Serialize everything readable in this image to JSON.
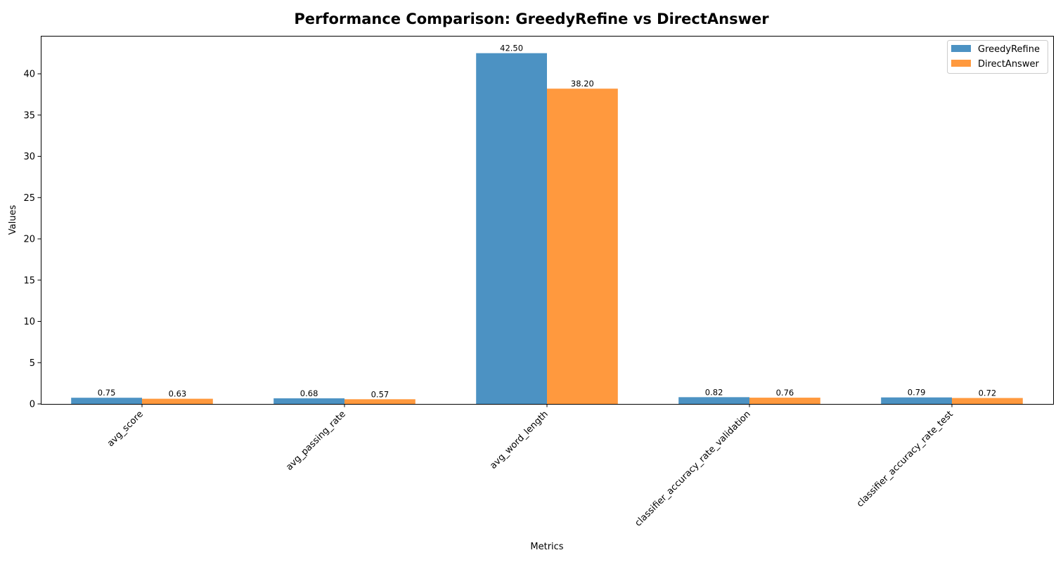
{
  "chart_data": {
    "type": "bar",
    "title": "Performance Comparison: GreedyRefine vs DirectAnswer",
    "xlabel": "Metrics",
    "ylabel": "Values",
    "categories": [
      "avg_score",
      "avg_passing_rate",
      "avg_word_length",
      "classifier_accuracy_rate_validation",
      "classifier_accuracy_rate_test"
    ],
    "series": [
      {
        "name": "GreedyRefine",
        "values": [
          0.75,
          0.68,
          42.5,
          0.82,
          0.79
        ],
        "labels": [
          "0.75",
          "0.68",
          "42.50",
          "0.82",
          "0.79"
        ],
        "color": "#4c92c3"
      },
      {
        "name": "DirectAnswer",
        "values": [
          0.63,
          0.57,
          38.2,
          0.76,
          0.72
        ],
        "labels": [
          "0.63",
          "0.57",
          "38.20",
          "0.76",
          "0.72"
        ],
        "color": "#ff993e"
      }
    ],
    "ylim": [
      0,
      44.6
    ],
    "yticks": [
      0,
      5,
      10,
      15,
      20,
      25,
      30,
      35,
      40
    ],
    "grid": false,
    "legend_position": "top-right"
  }
}
